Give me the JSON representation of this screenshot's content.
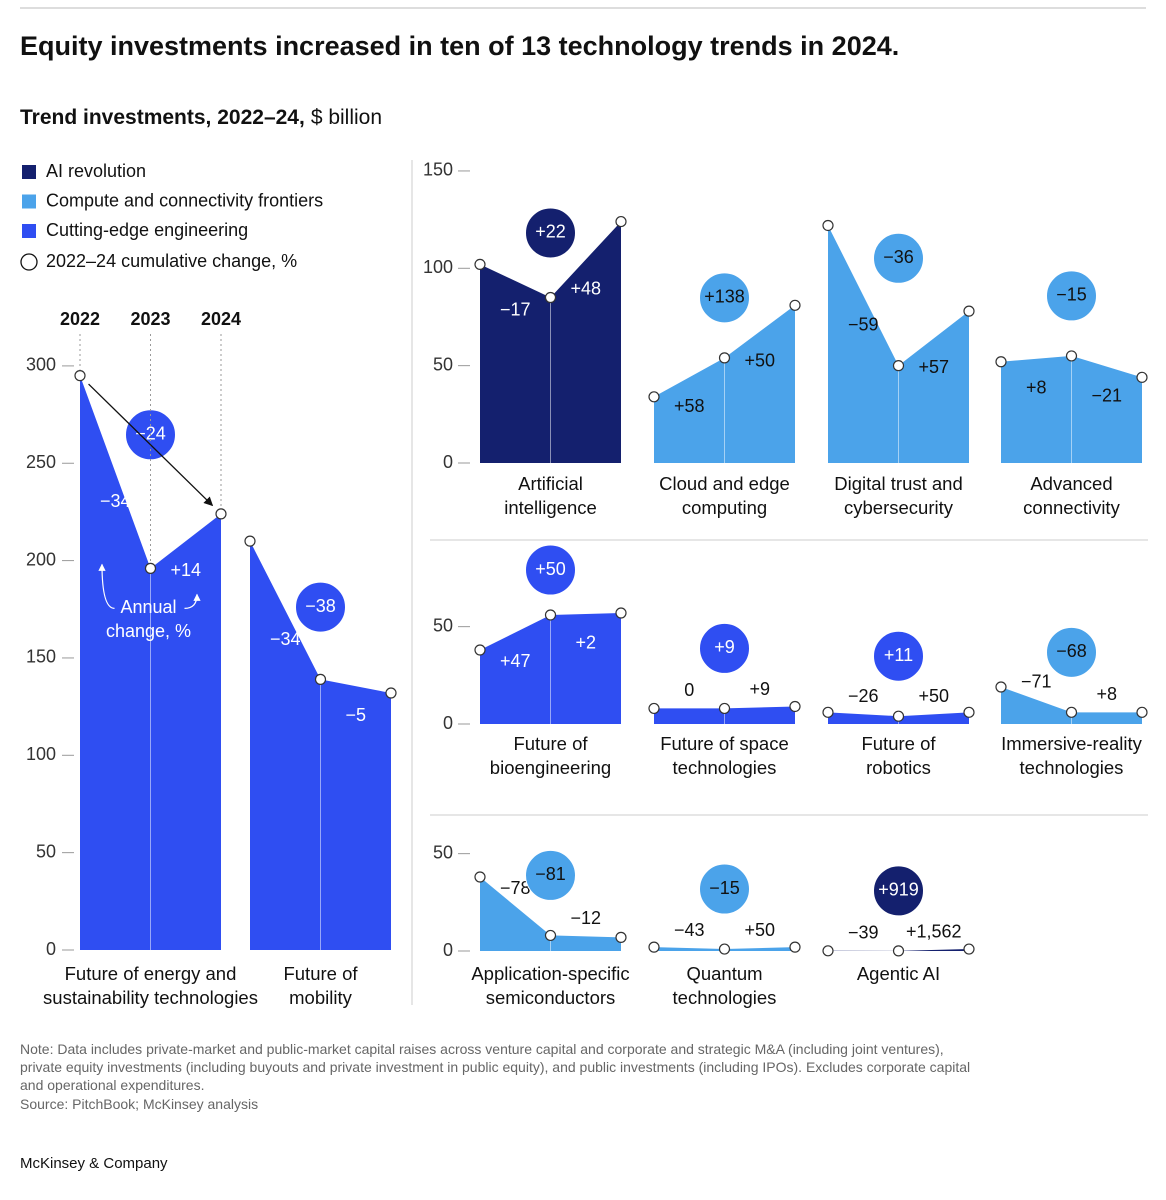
{
  "header": {
    "title": "Equity investments increased in ten of 13 technology trends in 2024.",
    "subtitle": "Trend investments, 2022–24,",
    "subtitle_unit": "$ billion",
    "legend": [
      {
        "name": "AI revolution",
        "color": "#14206e"
      },
      {
        "name": "Compute and connectivity frontiers",
        "color": "#4ba3ea"
      },
      {
        "name": "Cutting-edge engineering",
        "color": "#2f4ef2"
      }
    ],
    "legend_marker_label": "2022–24 cumulative change, %"
  },
  "chart_data": [
    {
      "type": "area",
      "years": [
        "2022",
        "2023",
        "2024"
      ],
      "annotation": [
        "Annual",
        "change, %"
      ],
      "ylim": [
        0,
        300
      ],
      "yticks": [
        0,
        50,
        100,
        150,
        200,
        250,
        300
      ],
      "trends": [
        {
          "name": [
            "Future of energy and",
            "sustainability technologies"
          ],
          "group": 2,
          "values": [
            295,
            196,
            224
          ],
          "change_labels": [
            "−34",
            "+14"
          ],
          "cumulative": "−24"
        },
        {
          "name": [
            "Future of",
            "mobility"
          ],
          "group": 2,
          "values": [
            210,
            139,
            132
          ],
          "change_labels": [
            "−34",
            "−5"
          ],
          "cumulative": "−38"
        }
      ]
    },
    {
      "type": "area",
      "ylim": [
        0,
        150
      ],
      "yticks": [
        0,
        50,
        100,
        150
      ],
      "trends": [
        {
          "name": [
            "Artificial",
            "intelligence"
          ],
          "group": 0,
          "values": [
            102,
            85,
            124
          ],
          "change_labels": [
            "−17",
            "+48"
          ],
          "cumulative": "+22"
        },
        {
          "name": [
            "Cloud and edge",
            "computing"
          ],
          "group": 1,
          "values": [
            34,
            54,
            81
          ],
          "change_labels": [
            "+58",
            "+50"
          ],
          "cumulative": "+138"
        },
        {
          "name": [
            "Digital trust and",
            "cybersecurity"
          ],
          "group": 1,
          "values": [
            122,
            50,
            78
          ],
          "change_labels": [
            "−59",
            "+57"
          ],
          "cumulative": "−36"
        },
        {
          "name": [
            "Advanced",
            "connectivity"
          ],
          "group": 1,
          "values": [
            52,
            55,
            44
          ],
          "change_labels": [
            "+8",
            "−21"
          ],
          "cumulative": "−15"
        }
      ]
    },
    {
      "type": "area",
      "ylim": [
        0,
        50
      ],
      "yticks": [
        0,
        50
      ],
      "trends": [
        {
          "name": [
            "Future of",
            "bioengineering"
          ],
          "group": 2,
          "values": [
            38,
            56,
            57
          ],
          "change_labels": [
            "+47",
            "+2"
          ],
          "cumulative": "+50"
        },
        {
          "name": [
            "Future of space",
            "technologies"
          ],
          "group": 2,
          "values": [
            8,
            8,
            9
          ],
          "change_labels": [
            "0",
            "+9"
          ],
          "cumulative": "+9"
        },
        {
          "name": [
            "Future of",
            "robotics"
          ],
          "group": 2,
          "values": [
            6,
            4,
            6
          ],
          "change_labels": [
            "−26",
            "+50"
          ],
          "cumulative": "+11"
        },
        {
          "name": [
            "Immersive-reality",
            "technologies"
          ],
          "group": 1,
          "values": [
            19,
            6,
            6
          ],
          "change_labels": [
            "−71",
            "+8"
          ],
          "cumulative": "−68"
        }
      ]
    },
    {
      "type": "area",
      "ylim": [
        0,
        50
      ],
      "yticks": [
        0,
        50
      ],
      "trends": [
        {
          "name": [
            "Application-specific",
            "semiconductors"
          ],
          "group": 1,
          "values": [
            38,
            8,
            7
          ],
          "change_labels": [
            "−78",
            "−12"
          ],
          "cumulative": "−81"
        },
        {
          "name": [
            "Quantum",
            "technologies"
          ],
          "group": 1,
          "values": [
            2,
            1,
            2
          ],
          "change_labels": [
            "−43",
            "+50"
          ],
          "cumulative": "−15"
        },
        {
          "name": [
            "Agentic AI"
          ],
          "group": 0,
          "values": [
            0.1,
            0.06,
            1
          ],
          "change_labels": [
            "−39",
            "+1,562"
          ],
          "cumulative": "+919"
        }
      ]
    }
  ],
  "footer": {
    "note": [
      "Note: Data includes private-market and public-market capital raises across venture capital and corporate and strategic M&A (including joint ventures),",
      "private equity investments (including buyouts and private investment in public equity), and public investments (including IPOs). Excludes corporate capital",
      "and operational expenditures."
    ],
    "source": "Source: PitchBook; McKinsey analysis",
    "brand": "McKinsey & Company"
  }
}
